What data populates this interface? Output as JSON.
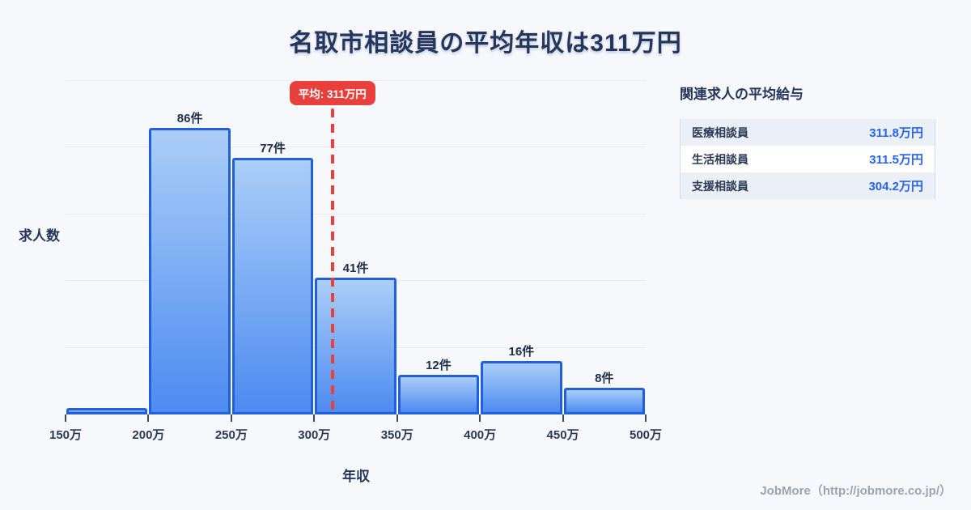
{
  "title": "名取市相談員の平均年収は311万円",
  "chart_data": {
    "type": "bar",
    "subtype": "histogram",
    "categories": [
      "150万-200万",
      "200万-250万",
      "250万-300万",
      "300万-350万",
      "350万-400万",
      "400万-450万",
      "450万-500万"
    ],
    "values": [
      2,
      86,
      77,
      41,
      12,
      16,
      8
    ],
    "bar_labels": [
      "",
      "86件",
      "77件",
      "41件",
      "12件",
      "16件",
      "8件"
    ],
    "x_ticks": [
      "150万",
      "200万",
      "250万",
      "300万",
      "350万",
      "400万",
      "450万",
      "500万"
    ],
    "x_range": [
      150,
      500
    ],
    "ylim": [
      0,
      100
    ],
    "gridline_step": 20,
    "grid": "horizontal-only",
    "xlabel": "年収",
    "ylabel": "求人数",
    "average": {
      "value": 311,
      "label": "平均: 311万円"
    },
    "colors": {
      "bar_fill_top": "#abcef8",
      "bar_fill_bottom": "#4d8bf0",
      "bar_border": "#2160dd",
      "average_red": "#e8413d",
      "title_navy": "#24365c",
      "value_blue": "#2563eb",
      "background": "#f7f8fc"
    }
  },
  "panel": {
    "heading": "関連求人の平均給与",
    "rows": [
      {
        "label": "医療相談員",
        "value": "311.8万円"
      },
      {
        "label": "生活相談員",
        "value": "311.5万円"
      },
      {
        "label": "支援相談員",
        "value": "304.2万円"
      }
    ]
  },
  "footer": {
    "credit": "JobMore（http://jobmore.co.jp/）"
  }
}
